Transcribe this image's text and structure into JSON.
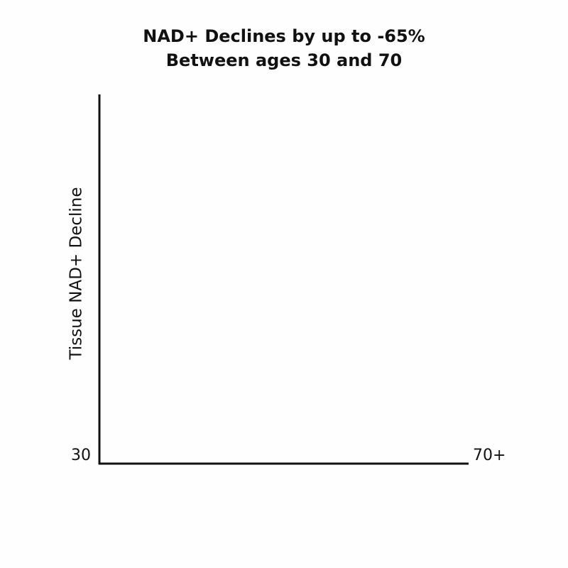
{
  "chart_data": {
    "type": "line",
    "title": [
      "NAD+ Declines by up to -65%",
      "Between ages 30 and 70"
    ],
    "y_label": "Tissue NAD+ Decline",
    "xlim": [
      30,
      70
    ],
    "xticks": [
      30,
      {
        "value": 70,
        "label": "70+"
      }
    ],
    "series": []
  }
}
